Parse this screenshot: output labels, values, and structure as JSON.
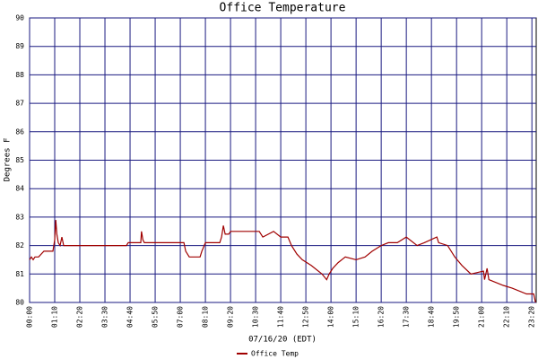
{
  "chart_data": {
    "type": "line",
    "title": "Office Temperature",
    "x_label": "07/16/20 (EDT)",
    "y_label": "Degrees F",
    "xlim": [
      0,
      1412
    ],
    "ylim": [
      80,
      90
    ],
    "yticks": [
      80,
      81,
      82,
      83,
      84,
      85,
      86,
      87,
      88,
      89,
      90
    ],
    "xticks": [
      {
        "value": 0,
        "label": "00:00"
      },
      {
        "value": 70,
        "label": "01:10"
      },
      {
        "value": 140,
        "label": "02:20"
      },
      {
        "value": 210,
        "label": "03:30"
      },
      {
        "value": 280,
        "label": "04:40"
      },
      {
        "value": 350,
        "label": "05:50"
      },
      {
        "value": 420,
        "label": "07:00"
      },
      {
        "value": 490,
        "label": "08:10"
      },
      {
        "value": 560,
        "label": "09:20"
      },
      {
        "value": 630,
        "label": "10:30"
      },
      {
        "value": 700,
        "label": "11:40"
      },
      {
        "value": 770,
        "label": "12:50"
      },
      {
        "value": 840,
        "label": "14:00"
      },
      {
        "value": 910,
        "label": "15:10"
      },
      {
        "value": 980,
        "label": "16:20"
      },
      {
        "value": 1050,
        "label": "17:30"
      },
      {
        "value": 1120,
        "label": "18:40"
      },
      {
        "value": 1190,
        "label": "19:50"
      },
      {
        "value": 1260,
        "label": "21:00"
      },
      {
        "value": 1330,
        "label": "22:10"
      },
      {
        "value": 1400,
        "label": "23:20"
      }
    ],
    "grid": true,
    "legend": "bottom",
    "series": [
      {
        "name": "Office Temp",
        "color": "#a00000",
        "x": [
          0,
          5,
          10,
          15,
          25,
          40,
          65,
          70,
          73,
          76,
          80,
          85,
          90,
          95,
          200,
          270,
          275,
          310,
          312,
          316,
          320,
          430,
          435,
          445,
          475,
          480,
          490,
          530,
          535,
          540,
          545,
          555,
          560,
          640,
          650,
          680,
          700,
          720,
          730,
          745,
          760,
          785,
          815,
          828,
          835,
          845,
          860,
          880,
          910,
          935,
          955,
          980,
          1000,
          1025,
          1050,
          1080,
          1100,
          1135,
          1140,
          1165,
          1185,
          1205,
          1230,
          1265,
          1268,
          1275,
          1280,
          1320,
          1345,
          1385,
          1405,
          1410
        ],
        "values": [
          81.5,
          81.6,
          81.5,
          81.6,
          81.6,
          81.8,
          81.8,
          82.2,
          82.9,
          82.4,
          82.1,
          82.0,
          82.3,
          82.0,
          82.0,
          82.0,
          82.1,
          82.1,
          82.5,
          82.2,
          82.1,
          82.1,
          81.8,
          81.6,
          81.6,
          81.8,
          82.1,
          82.1,
          82.3,
          82.7,
          82.4,
          82.4,
          82.5,
          82.5,
          82.3,
          82.5,
          82.3,
          82.3,
          82.0,
          81.7,
          81.5,
          81.3,
          81.0,
          80.8,
          81.0,
          81.2,
          81.4,
          81.6,
          81.5,
          81.6,
          81.8,
          82.0,
          82.1,
          82.1,
          82.3,
          82.0,
          82.1,
          82.3,
          82.1,
          82.0,
          81.6,
          81.3,
          81.0,
          81.1,
          80.8,
          81.2,
          80.8,
          80.6,
          80.5,
          80.3,
          80.3,
          80.0
        ]
      }
    ]
  }
}
